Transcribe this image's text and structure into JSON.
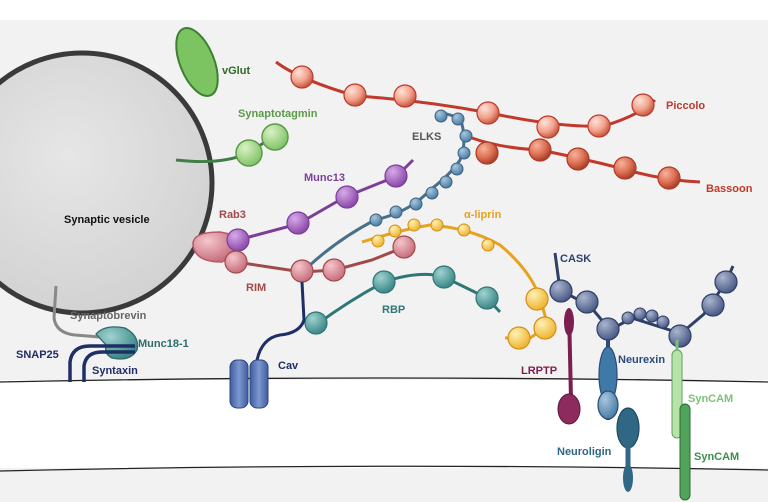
{
  "labels": {
    "vglut": "vGlut",
    "synaptotagmin": "Synaptotagmin",
    "synaptic_vesicle": "Synaptic vesicle",
    "elks": "ELKS",
    "piccolo": "Piccolo",
    "bassoon": "Bassoon",
    "munc13": "Munc13",
    "rab3": "Rab3",
    "alpha_liprin": "α-liprin",
    "rim": "RIM",
    "rbp": "RBP",
    "cask": "CASK",
    "synaptobrevin": "Synaptobrevin",
    "munc18": "Munc18-1",
    "snap25": "SNAP25",
    "syntaxin": "Syntaxin",
    "cav": "Cav",
    "lrptp": "LRPTP",
    "neurexin": "Neurexin",
    "syncam_pre": "SynCAM",
    "neuroligin": "Neuroligin",
    "syncam_post": "SynCAM"
  },
  "colors": {
    "background": "#f2f2f2",
    "vesicle": "#dddddd",
    "vglut": "#5fae4a",
    "synaptotagmin": "#6a9a5e",
    "piccolo": "#c0392b",
    "bassoon": "#c0392b",
    "elks": "#4a6f8a",
    "munc13": "#7b3f99",
    "rab3": "#c0566b",
    "alpha_liprin": "#e7a21e",
    "rim": "#a04a4a",
    "rbp": "#2f7777",
    "cask": "#2f3f66",
    "neurexin": "#2c4a7a",
    "syncam_pre": "#7ec07a",
    "syncam_post": "#3e8f4a",
    "neuroligin": "#2f6784",
    "lrptp": "#7a1f4f",
    "cav": "#3b5a99",
    "syntaxin": "#1f2f66",
    "snap25": "#1f2f66",
    "munc18": "#3a7a7a",
    "synaptobrevin": "#888888"
  }
}
